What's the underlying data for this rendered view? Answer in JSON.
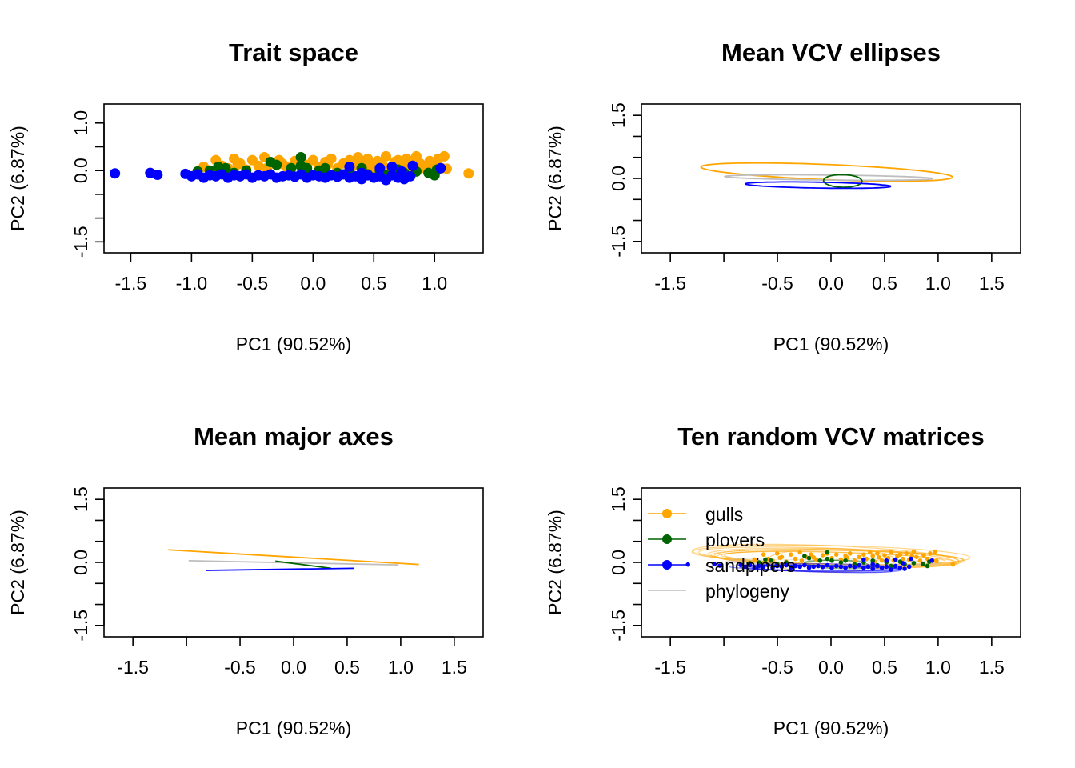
{
  "colors": {
    "gulls": "#FFA500",
    "plovers": "#006400",
    "sandpipers": "#0000FF",
    "phylogeny": "#BEBEBE",
    "axis": "#000000",
    "background": "#FFFFFF"
  },
  "chart_data": [
    {
      "id": "trait",
      "type": "scatter",
      "title": "Trait space",
      "xlabel": "PC1 (90.52%)",
      "ylabel": "PC2 (6.87%)",
      "xlim": [
        -1.72,
        1.4
      ],
      "ylim": [
        -1.73,
        1.4
      ],
      "xticks": [
        -1.5,
        -1.0,
        -0.5,
        0.0,
        0.5,
        1.0
      ],
      "xtick_labels": [
        "-1.5",
        "-1.0",
        "-0.5",
        "0.0",
        "0.5",
        "1.0"
      ],
      "yticks": [
        -1.5,
        -1.0,
        -0.5,
        0.0,
        0.5,
        1.0
      ],
      "ytick_labels": [
        "-1.5",
        "",
        "",
        "0.0",
        "",
        "1.0"
      ],
      "grid": false,
      "series": [
        {
          "name": "gulls",
          "points": [
            [
              -0.9,
              0.08
            ],
            [
              -0.8,
              0.22
            ],
            [
              -0.75,
              0.1
            ],
            [
              -0.7,
              0.05
            ],
            [
              -0.65,
              0.25
            ],
            [
              -0.6,
              0.15
            ],
            [
              -0.55,
              0.02
            ],
            [
              -0.5,
              0.22
            ],
            [
              -0.45,
              0.1
            ],
            [
              -0.4,
              0.28
            ],
            [
              -0.38,
              0.05
            ],
            [
              -0.33,
              0.15
            ],
            [
              -0.28,
              0.22
            ],
            [
              -0.22,
              0.08
            ],
            [
              -0.15,
              0.2
            ],
            [
              -0.1,
              0.25
            ],
            [
              -0.05,
              0.12
            ],
            [
              0.0,
              0.22
            ],
            [
              0.05,
              0.08
            ],
            [
              0.1,
              0.18
            ],
            [
              0.15,
              0.25
            ],
            [
              0.2,
              0.05
            ],
            [
              0.25,
              0.15
            ],
            [
              0.3,
              0.22
            ],
            [
              0.33,
              0.1
            ],
            [
              0.37,
              0.28
            ],
            [
              0.4,
              0.18
            ],
            [
              0.45,
              0.25
            ],
            [
              0.5,
              0.05
            ],
            [
              0.53,
              0.2
            ],
            [
              0.57,
              0.12
            ],
            [
              0.6,
              0.3
            ],
            [
              0.63,
              0.05
            ],
            [
              0.67,
              0.18
            ],
            [
              0.7,
              0.22
            ],
            [
              0.73,
              0.1
            ],
            [
              0.77,
              0.25
            ],
            [
              0.8,
              0.08
            ],
            [
              0.83,
              0.18
            ],
            [
              0.88,
              0.15
            ],
            [
              0.92,
              0.05
            ],
            [
              0.96,
              0.2
            ],
            [
              1.0,
              0.1
            ],
            [
              1.03,
              0.25
            ],
            [
              1.06,
              0.05
            ],
            [
              1.08,
              0.3
            ],
            [
              1.1,
              0.04
            ],
            [
              1.28,
              -0.06
            ],
            [
              -0.25,
              0.14
            ],
            [
              0.47,
              0.14
            ],
            [
              0.12,
              0.13
            ],
            [
              -0.62,
              0.13
            ],
            [
              0.85,
              0.3
            ],
            [
              0.42,
              0.02
            ]
          ]
        },
        {
          "name": "plovers",
          "points": [
            [
              -0.95,
              -0.02
            ],
            [
              -0.85,
              0.0
            ],
            [
              -0.78,
              0.08
            ],
            [
              -0.72,
              0.05
            ],
            [
              -0.65,
              -0.05
            ],
            [
              -0.55,
              0.0
            ],
            [
              -0.35,
              0.18
            ],
            [
              -0.3,
              0.12
            ],
            [
              -0.18,
              0.05
            ],
            [
              -0.1,
              0.1
            ],
            [
              -0.1,
              0.28
            ],
            [
              -0.05,
              0.05
            ],
            [
              0.05,
              0.0
            ],
            [
              0.1,
              0.05
            ],
            [
              0.2,
              -0.05
            ],
            [
              0.3,
              0.0
            ],
            [
              0.4,
              0.05
            ],
            [
              0.45,
              -0.08
            ],
            [
              0.55,
              0.0
            ],
            [
              0.6,
              -0.1
            ],
            [
              0.7,
              0.02
            ],
            [
              0.75,
              -0.05
            ],
            [
              0.85,
              -0.02
            ],
            [
              0.95,
              -0.05
            ],
            [
              1.0,
              -0.1
            ],
            [
              1.02,
              0.02
            ]
          ]
        },
        {
          "name": "sandpipers",
          "points": [
            [
              -1.63,
              -0.06
            ],
            [
              -1.34,
              -0.05
            ],
            [
              -1.28,
              -0.09
            ],
            [
              -1.05,
              -0.07
            ],
            [
              -1.0,
              -0.12
            ],
            [
              -0.95,
              -0.08
            ],
            [
              -0.9,
              -0.15
            ],
            [
              -0.85,
              -0.1
            ],
            [
              -0.8,
              -0.12
            ],
            [
              -0.75,
              -0.08
            ],
            [
              -0.7,
              -0.15
            ],
            [
              -0.65,
              -0.1
            ],
            [
              -0.6,
              -0.12
            ],
            [
              -0.55,
              -0.08
            ],
            [
              -0.5,
              -0.15
            ],
            [
              -0.45,
              -0.1
            ],
            [
              -0.4,
              -0.12
            ],
            [
              -0.35,
              -0.08
            ],
            [
              -0.3,
              -0.15
            ],
            [
              -0.25,
              -0.12
            ],
            [
              -0.2,
              -0.1
            ],
            [
              -0.15,
              -0.13
            ],
            [
              -0.1,
              -0.08
            ],
            [
              -0.05,
              -0.15
            ],
            [
              0.0,
              -0.1
            ],
            [
              0.05,
              -0.12
            ],
            [
              0.1,
              -0.15
            ],
            [
              0.15,
              -0.1
            ],
            [
              0.2,
              -0.13
            ],
            [
              0.25,
              -0.08
            ],
            [
              0.3,
              -0.15
            ],
            [
              0.35,
              -0.12
            ],
            [
              0.4,
              -0.18
            ],
            [
              0.45,
              -0.1
            ],
            [
              0.5,
              -0.15
            ],
            [
              0.55,
              -0.12
            ],
            [
              0.6,
              -0.2
            ],
            [
              0.65,
              -0.1
            ],
            [
              0.7,
              -0.15
            ],
            [
              0.75,
              -0.18
            ],
            [
              0.8,
              -0.12
            ],
            [
              0.3,
              0.08
            ],
            [
              0.4,
              -0.05
            ],
            [
              0.55,
              0.05
            ],
            [
              0.65,
              0.08
            ],
            [
              0.73,
              -0.02
            ],
            [
              0.82,
              0.1
            ],
            [
              1.05,
              0.05
            ]
          ]
        }
      ]
    },
    {
      "id": "ellipses",
      "type": "line",
      "title": "Mean VCV ellipses",
      "xlabel": "PC1 (90.52%)",
      "ylabel": "PC2 (6.87%)",
      "xlim": [
        -1.77,
        1.77
      ],
      "ylim": [
        -1.77,
        1.77
      ],
      "xticks": [
        -1.5,
        -1.0,
        -0.5,
        0.0,
        0.5,
        1.0,
        1.5
      ],
      "xtick_labels": [
        "-1.5",
        "",
        "-0.5",
        "0.0",
        "0.5",
        "1.0",
        "1.5"
      ],
      "yticks": [
        -1.5,
        -1.0,
        -0.5,
        0.0,
        0.5,
        1.0,
        1.5
      ],
      "ytick_labels": [
        "-1.5",
        "",
        "",
        "0.0",
        "",
        "",
        "1.5"
      ],
      "grid": false,
      "ellipses": [
        {
          "name": "gulls",
          "cx": -0.04,
          "cy": 0.15,
          "a": 1.18,
          "b": 0.18,
          "angle_deg": -6.0
        },
        {
          "name": "phylogeny",
          "cx": -0.02,
          "cy": 0.02,
          "a": 0.97,
          "b": 0.06,
          "angle_deg": -1.5
        },
        {
          "name": "plovers",
          "cx": 0.11,
          "cy": -0.06,
          "a": 0.18,
          "b": 0.15,
          "angle_deg": -8.0
        },
        {
          "name": "sandpipers",
          "cx": -0.12,
          "cy": -0.16,
          "a": 0.68,
          "b": 0.07,
          "angle_deg": -2.5
        }
      ]
    },
    {
      "id": "axes",
      "type": "line",
      "title": "Mean major axes",
      "xlabel": "PC1 (90.52%)",
      "ylabel": "PC2 (6.87%)",
      "xlim": [
        -1.77,
        1.77
      ],
      "ylim": [
        -1.77,
        1.77
      ],
      "xticks": [
        -1.5,
        -1.0,
        -0.5,
        0.0,
        0.5,
        1.0,
        1.5
      ],
      "xtick_labels": [
        "-1.5",
        "",
        "-0.5",
        "0.0",
        "0.5",
        "1.0",
        "1.5"
      ],
      "yticks": [
        -1.5,
        -1.0,
        -0.5,
        0.0,
        0.5,
        1.0,
        1.5
      ],
      "ytick_labels": [
        "-1.5",
        "",
        "",
        "0.0",
        "",
        "",
        "1.5"
      ],
      "grid": false,
      "segments": [
        {
          "name": "gulls",
          "x": [
            -1.17,
            1.17
          ],
          "y": [
            0.3,
            -0.05
          ]
        },
        {
          "name": "phylogeny",
          "x": [
            -0.98,
            0.98
          ],
          "y": [
            0.04,
            -0.06
          ]
        },
        {
          "name": "plovers",
          "x": [
            -0.17,
            0.35
          ],
          "y": [
            0.03,
            -0.14
          ]
        },
        {
          "name": "sandpipers",
          "x": [
            -0.82,
            0.56
          ],
          "y": [
            -0.19,
            -0.14
          ]
        }
      ]
    },
    {
      "id": "random",
      "type": "line",
      "title": "Ten random VCV matrices",
      "xlabel": "PC1 (90.52%)",
      "ylabel": "PC2 (6.87%)",
      "xlim": [
        -1.77,
        1.77
      ],
      "ylim": [
        -1.77,
        1.77
      ],
      "xticks": [
        -1.5,
        -1.0,
        -0.5,
        0.0,
        0.5,
        1.0,
        1.5
      ],
      "xtick_labels": [
        "-1.5",
        "",
        "-0.5",
        "0.0",
        "0.5",
        "1.0",
        "1.5"
      ],
      "yticks": [
        -1.5,
        -1.0,
        -0.5,
        0.0,
        0.5,
        1.0,
        1.5
      ],
      "ytick_labels": [
        "-1.5",
        "",
        "",
        "0.0",
        "",
        "",
        "1.5"
      ],
      "grid": false,
      "legend": {
        "position": "top-left",
        "entries": [
          {
            "name": "gulls",
            "label": "gulls"
          },
          {
            "name": "plovers",
            "label": "plovers"
          },
          {
            "name": "sandpipers",
            "label": "sandpipers"
          },
          {
            "name": "phylogeny",
            "label": "phylogeny"
          }
        ]
      },
      "ellipses": [
        {
          "name": "gulls",
          "cx": 0.05,
          "cy": 0.12,
          "a": 1.2,
          "b": 0.2,
          "angle_deg": -4
        },
        {
          "name": "gulls",
          "cx": 0.0,
          "cy": 0.18,
          "a": 1.3,
          "b": 0.22,
          "angle_deg": -3
        },
        {
          "name": "gulls",
          "cx": 0.1,
          "cy": 0.08,
          "a": 1.1,
          "b": 0.16,
          "angle_deg": -5
        },
        {
          "name": "gulls",
          "cx": -0.05,
          "cy": 0.15,
          "a": 1.25,
          "b": 0.25,
          "angle_deg": -6
        },
        {
          "name": "gulls",
          "cx": 0.08,
          "cy": 0.1,
          "a": 1.15,
          "b": 0.18,
          "angle_deg": -2
        },
        {
          "name": "gulls",
          "cx": 0.0,
          "cy": 0.05,
          "a": 0.6,
          "b": 0.28,
          "angle_deg": 0
        },
        {
          "name": "gulls",
          "cx": 0.02,
          "cy": 0.1,
          "a": 1.05,
          "b": 0.14,
          "angle_deg": -4
        },
        {
          "name": "gulls",
          "cx": -0.02,
          "cy": 0.14,
          "a": 1.22,
          "b": 0.2,
          "angle_deg": -5
        },
        {
          "name": "gulls",
          "cx": 0.06,
          "cy": 0.12,
          "a": 1.18,
          "b": 0.17,
          "angle_deg": -3
        },
        {
          "name": "gulls",
          "cx": 0.03,
          "cy": 0.09,
          "a": 1.12,
          "b": 0.21,
          "angle_deg": -4
        },
        {
          "name": "phylogeny",
          "cx": 0.02,
          "cy": 0.0,
          "a": 1.0,
          "b": 0.06,
          "angle_deg": -1
        },
        {
          "name": "phylogeny",
          "cx": 0.0,
          "cy": 0.02,
          "a": 0.95,
          "b": 0.08,
          "angle_deg": -2
        },
        {
          "name": "plovers",
          "cx": 0.1,
          "cy": -0.05,
          "a": 0.35,
          "b": 0.1,
          "angle_deg": -3
        },
        {
          "name": "plovers",
          "cx": 0.05,
          "cy": -0.03,
          "a": 0.3,
          "b": 0.08,
          "angle_deg": -5
        },
        {
          "name": "sandpipers",
          "cx": -0.1,
          "cy": -0.14,
          "a": 0.75,
          "b": 0.07,
          "angle_deg": -2
        },
        {
          "name": "sandpipers",
          "cx": -0.05,
          "cy": -0.15,
          "a": 0.7,
          "b": 0.08,
          "angle_deg": -3
        },
        {
          "name": "sandpipers",
          "cx": -0.15,
          "cy": -0.13,
          "a": 0.8,
          "b": 0.06,
          "angle_deg": -2
        },
        {
          "name": "sandpipers",
          "cx": -0.08,
          "cy": -0.16,
          "a": 0.65,
          "b": 0.07,
          "angle_deg": -4
        },
        {
          "name": "sandpipers",
          "cx": -0.12,
          "cy": -0.12,
          "a": 0.72,
          "b": 0.09,
          "angle_deg": -1
        }
      ],
      "points_from": "trait",
      "points_scale": 0.85
    }
  ]
}
